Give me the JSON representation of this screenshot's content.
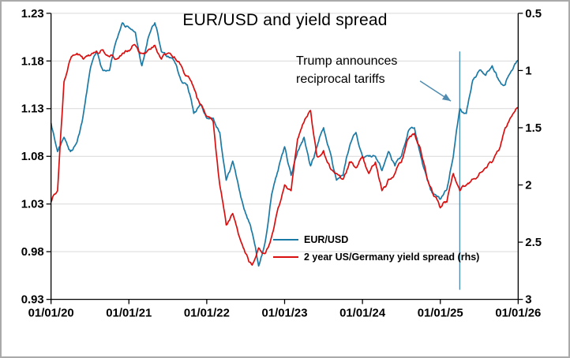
{
  "chart_data": {
    "type": "line",
    "title": "EUR/USD and yield spread",
    "x_axis": {
      "range": [
        2020,
        2026
      ],
      "tick_years": [
        2020,
        2021,
        2022,
        2023,
        2024,
        2025,
        2026
      ],
      "tick_labels": [
        "01/01/20",
        "01/01/21",
        "01/01/22",
        "01/01/23",
        "01/01/24",
        "01/01/25",
        "01/01/26"
      ]
    },
    "left_axis": {
      "range": [
        0.93,
        1.23
      ],
      "ticks": [
        1.23,
        1.18,
        1.13,
        1.08,
        1.03,
        0.98,
        0.93
      ],
      "labels": [
        "1.23",
        "1.18",
        "1.13",
        "1.08",
        "1.03",
        "0.98",
        "0.93"
      ]
    },
    "right_axis": {
      "range": [
        0.5,
        3
      ],
      "inverted": true,
      "ticks": [
        0.5,
        1,
        1.5,
        2,
        2.5,
        3
      ],
      "labels": [
        "0.5",
        "1",
        "1.5",
        "2",
        "2.5",
        "3"
      ]
    },
    "grid": "horizontal",
    "style": {
      "grid_color": "#d9d9d9",
      "axis_color": "#000000",
      "background": "#ffffff"
    },
    "points_start_year": 2020,
    "points_per_year": 12,
    "series": [
      {
        "name": "EUR/USD",
        "axis": "left",
        "color": "#1b7aa5",
        "values": [
          1.115,
          1.085,
          1.1,
          1.085,
          1.095,
          1.125,
          1.17,
          1.19,
          1.17,
          1.17,
          1.2,
          1.22,
          1.215,
          1.21,
          1.175,
          1.205,
          1.22,
          1.19,
          1.185,
          1.18,
          1.16,
          1.155,
          1.125,
          1.135,
          1.12,
          1.12,
          1.105,
          1.055,
          1.075,
          1.045,
          1.02,
          1.0,
          0.965,
          0.99,
          1.04,
          1.065,
          1.09,
          1.06,
          1.085,
          1.1,
          1.07,
          1.09,
          1.11,
          1.085,
          1.055,
          1.06,
          1.09,
          1.105,
          1.08,
          1.08,
          1.08,
          1.065,
          1.085,
          1.07,
          1.08,
          1.105,
          1.11,
          1.08,
          1.055,
          1.04,
          1.035,
          1.045,
          1.08,
          1.13,
          1.125,
          1.16,
          1.17,
          1.165,
          1.175,
          1.16,
          1.155,
          1.17,
          1.18
        ]
      },
      {
        "name": "2 year US/Germany yield spread (rhs)",
        "axis": "right",
        "color": "#d90f0f",
        "values": [
          2.15,
          2.05,
          1.1,
          0.9,
          0.85,
          0.9,
          0.87,
          0.83,
          0.82,
          0.88,
          0.9,
          0.85,
          0.83,
          0.78,
          0.85,
          0.82,
          0.78,
          0.9,
          0.85,
          0.88,
          0.95,
          1.05,
          1.15,
          1.3,
          1.4,
          1.45,
          2.0,
          2.35,
          2.25,
          2.45,
          2.6,
          2.7,
          2.55,
          2.6,
          2.45,
          2.2,
          2.0,
          2.05,
          1.6,
          1.45,
          1.35,
          1.75,
          1.7,
          1.85,
          1.9,
          1.95,
          1.8,
          1.85,
          1.75,
          1.9,
          1.8,
          2.05,
          1.95,
          1.9,
          1.8,
          1.6,
          1.55,
          1.7,
          1.95,
          2.1,
          2.2,
          2.15,
          1.9,
          2.05,
          2.0,
          1.95,
          1.9,
          1.85,
          1.8,
          1.7,
          1.5,
          1.4,
          1.33
        ]
      }
    ],
    "annotation": {
      "lines": [
        "Trump announces",
        "reciprocal tariffs"
      ],
      "color": "#4f8cb0",
      "event_x": 2025.25,
      "event_line_top": 1.19,
      "event_line_bottom": 0.94,
      "arrow_from_x": 2024.74,
      "arrow_from_y": 1.159,
      "arrow_to_x": 2025.135,
      "arrow_to_y": 1.138
    },
    "legend_position": "inside-bottom-center"
  }
}
